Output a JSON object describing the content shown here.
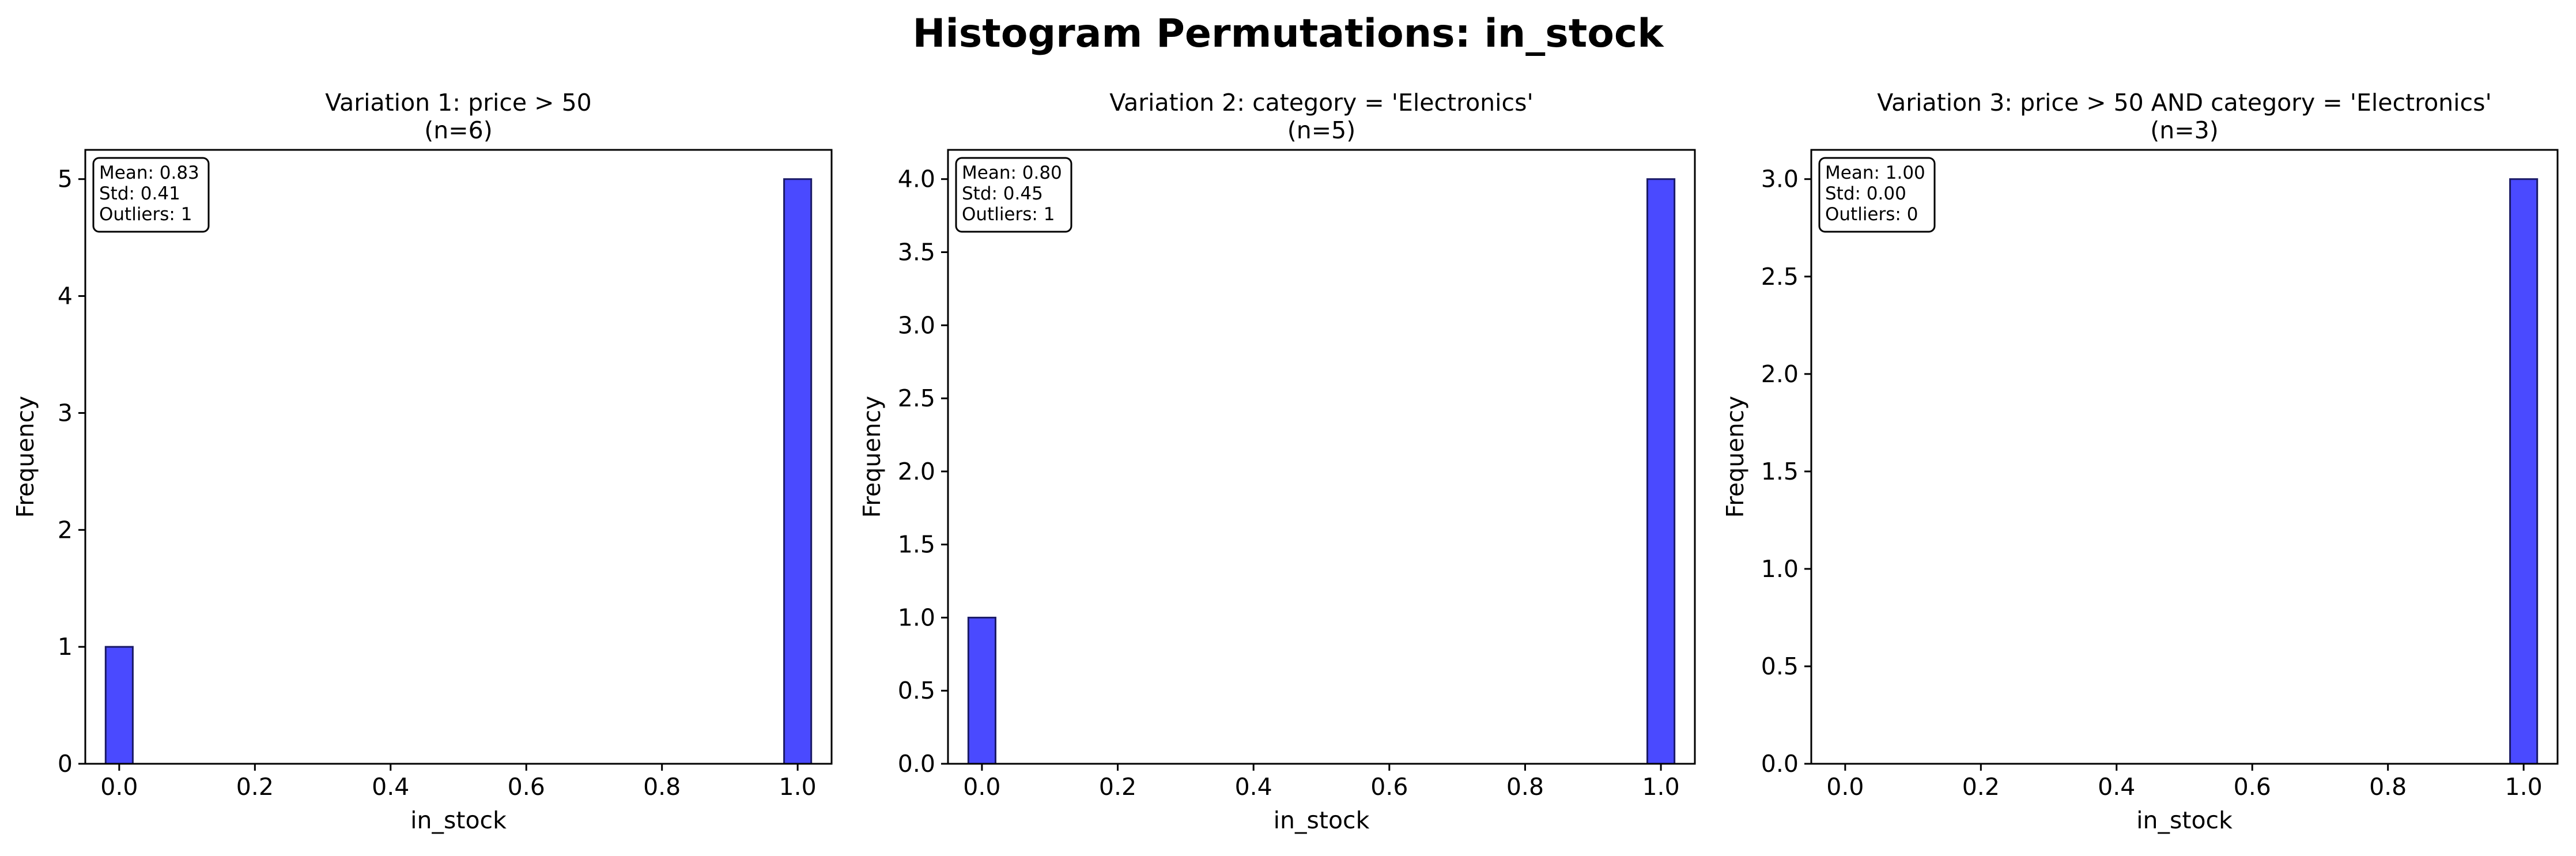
{
  "figure": {
    "suptitle": "Histogram Permutations: in_stock"
  },
  "colors": {
    "bar_fill": "#4a4aff",
    "bar_edge": "#1a1a66",
    "axis": "#000000"
  },
  "chart_data": [
    {
      "type": "bar",
      "title_line1": "Variation 1: price > 50",
      "title_line2": "(n=6)",
      "xlabel": "in_stock",
      "ylabel": "Frequency",
      "xlim": [
        -0.05,
        1.05
      ],
      "ylim": [
        0,
        5.25
      ],
      "xticks": [
        "0.0",
        "0.2",
        "0.4",
        "0.6",
        "0.8",
        "1.0"
      ],
      "xtick_values": [
        0.0,
        0.2,
        0.4,
        0.6,
        0.8,
        1.0
      ],
      "yticks": [
        "0",
        "1",
        "2",
        "3",
        "4",
        "5"
      ],
      "ytick_values": [
        0,
        1,
        2,
        3,
        4,
        5
      ],
      "bins": [
        {
          "x0": -0.02,
          "x1": 0.02,
          "count": 1
        },
        {
          "x0": 0.98,
          "x1": 1.02,
          "count": 5
        }
      ],
      "stats": [
        "Mean: 0.83",
        "Std: 0.41",
        "Outliers: 1"
      ]
    },
    {
      "type": "bar",
      "title_line1": "Variation 2: category = 'Electronics'",
      "title_line2": "(n=5)",
      "xlabel": "in_stock",
      "ylabel": "Frequency",
      "xlim": [
        -0.05,
        1.05
      ],
      "ylim": [
        0,
        4.2
      ],
      "xticks": [
        "0.0",
        "0.2",
        "0.4",
        "0.6",
        "0.8",
        "1.0"
      ],
      "xtick_values": [
        0.0,
        0.2,
        0.4,
        0.6,
        0.8,
        1.0
      ],
      "yticks": [
        "0.0",
        "0.5",
        "1.0",
        "1.5",
        "2.0",
        "2.5",
        "3.0",
        "3.5",
        "4.0"
      ],
      "ytick_values": [
        0,
        0.5,
        1.0,
        1.5,
        2.0,
        2.5,
        3.0,
        3.5,
        4.0
      ],
      "bins": [
        {
          "x0": -0.02,
          "x1": 0.02,
          "count": 1
        },
        {
          "x0": 0.98,
          "x1": 1.02,
          "count": 4
        }
      ],
      "stats": [
        "Mean: 0.80",
        "Std: 0.45",
        "Outliers: 1"
      ]
    },
    {
      "type": "bar",
      "title_line1": "Variation 3: price > 50 AND category = 'Electronics'",
      "title_line2": "(n=3)",
      "xlabel": "in_stock",
      "ylabel": "Frequency",
      "xlim": [
        -0.05,
        1.05
      ],
      "ylim": [
        0,
        3.15
      ],
      "xticks": [
        "0.0",
        "0.2",
        "0.4",
        "0.6",
        "0.8",
        "1.0"
      ],
      "xtick_values": [
        0.0,
        0.2,
        0.4,
        0.6,
        0.8,
        1.0
      ],
      "yticks": [
        "0.0",
        "0.5",
        "1.0",
        "1.5",
        "2.0",
        "2.5",
        "3.0"
      ],
      "ytick_values": [
        0,
        0.5,
        1.0,
        1.5,
        2.0,
        2.5,
        3.0
      ],
      "bins": [
        {
          "x0": 0.98,
          "x1": 1.02,
          "count": 3
        }
      ],
      "stats": [
        "Mean: 1.00",
        "Std: 0.00",
        "Outliers: 0"
      ]
    }
  ]
}
